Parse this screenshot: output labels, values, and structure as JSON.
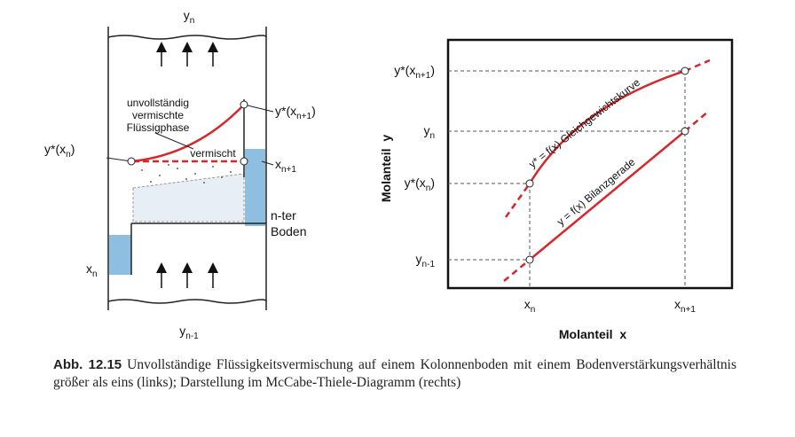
{
  "left": {
    "top_label": [
      "y",
      "n"
    ],
    "bottom_label": [
      "y",
      "n-1"
    ],
    "phase_label": [
      "unvollständig",
      "vermischte",
      "Flüssigphase"
    ],
    "mixed_label": "vermischt",
    "yx_n": [
      "y*(x",
      "n",
      ")"
    ],
    "yx_n1": [
      "y*(x",
      "n+1",
      ")"
    ],
    "x_n1": [
      "x",
      "n+1"
    ],
    "tray": [
      "n-ter",
      "Boden"
    ],
    "x_n": [
      "x",
      "n"
    ]
  },
  "right": {
    "y_labels": [
      [
        "y*(x",
        "n+1",
        ")"
      ],
      [
        "y",
        "n"
      ],
      [
        "y*(x",
        "n",
        ")"
      ],
      [
        "y",
        "n-1"
      ]
    ],
    "x_labels": [
      [
        "x",
        "n"
      ],
      [
        "x",
        "n+1"
      ]
    ],
    "x_title": "Molanteil  x",
    "y_title": "Molanteil  y",
    "equilibrium": "y* = f(x) Gleichgewichtskurve",
    "balance": "y = f(x) Bilanzgerade"
  },
  "caption": {
    "number": "Abb. 12.15",
    "text": "Unvollständige Flüssigkeitsvermischung auf einem Kolonnenboden mit einem Bodenverstärkungsverhältnis größer als eins (links); Darstellung im McCabe-Thiele-Diagramm (rechts)"
  }
}
